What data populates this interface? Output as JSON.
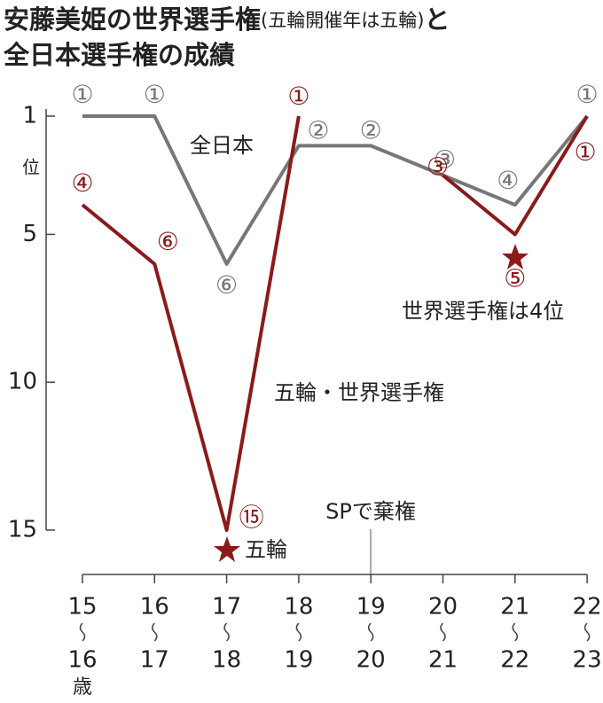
{
  "chart_data": {
    "type": "line",
    "title": "安藤美姫の世界選手権",
    "title_note": "(五輪開催年は五輪)",
    "title_end": "と",
    "title_line2": "全日本選手権の成績",
    "categories": [
      [
        "15",
        "16"
      ],
      [
        "16",
        "17"
      ],
      [
        "17",
        "18"
      ],
      [
        "18",
        "19"
      ],
      [
        "19",
        "20"
      ],
      [
        "20",
        "21"
      ],
      [
        "21",
        "22"
      ],
      [
        "22",
        "23"
      ]
    ],
    "x_unit": "歳",
    "y_unit": "位",
    "series": [
      {
        "name": "全日本",
        "color": "#777777",
        "values": [
          1,
          1,
          6,
          2,
          2,
          3,
          4,
          1
        ],
        "value_labels": [
          "①",
          "①",
          "⑥",
          "②",
          "②",
          "③",
          "④",
          "①"
        ]
      },
      {
        "name": "五輪・世界選手権",
        "color": "#8b1a1a",
        "values": [
          4,
          6,
          15,
          1,
          null,
          3,
          5,
          1
        ],
        "value_labels": [
          "④",
          "⑥",
          "⑮",
          "①",
          null,
          "③",
          "⑤",
          "①"
        ]
      }
    ],
    "ylim": [
      1,
      16.5
    ],
    "y_inverted": true,
    "yticks": [
      1,
      5,
      10,
      15
    ],
    "annotations": [
      "SPで棄権",
      "五輪",
      "世界選手権は4位"
    ]
  }
}
